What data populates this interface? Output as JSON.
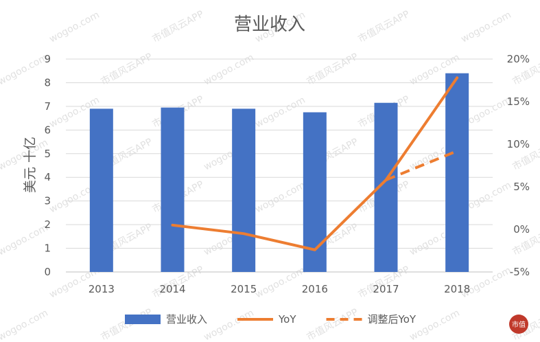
{
  "chart_data": {
    "type": "bar",
    "title": "营业收入",
    "categories": [
      "2013",
      "2014",
      "2015",
      "2016",
      "2017",
      "2018"
    ],
    "ylabel": "美元 十亿",
    "ylim": [
      0,
      9
    ],
    "y_ticks": [
      "0",
      "1",
      "2",
      "3",
      "4",
      "5",
      "6",
      "7",
      "8",
      "9"
    ],
    "y2lim": [
      -5,
      20
    ],
    "y2_ticks": [
      "-5%",
      "0%",
      "5%",
      "10%",
      "15%",
      "20%"
    ],
    "grid": true,
    "legend_position": "bottom",
    "series": [
      {
        "name": "营业收入",
        "type": "bar",
        "axis": "left",
        "color": "#4472C4",
        "values": [
          6.9,
          6.95,
          6.9,
          6.75,
          7.15,
          8.4
        ]
      },
      {
        "name": "YoY",
        "type": "line",
        "axis": "right",
        "color": "#ED7D31",
        "dash": false,
        "values": [
          null,
          0.5,
          -0.5,
          -2.4,
          5.8,
          17.8
        ]
      },
      {
        "name": "调整后YoY",
        "type": "line",
        "axis": "right",
        "color": "#ED7D31",
        "dash": true,
        "values": [
          null,
          null,
          null,
          null,
          5.8,
          9.2
        ]
      }
    ]
  },
  "watermark": {
    "text": "市值风云APP",
    "site": "wogoo.com"
  },
  "logo": {
    "text": "市值"
  }
}
